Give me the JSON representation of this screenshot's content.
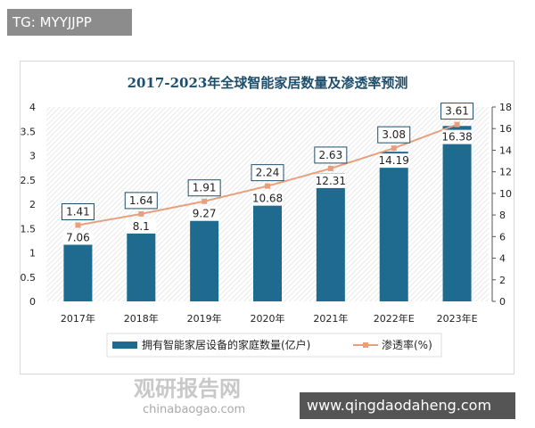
{
  "tag": "TG: MYYJJPP",
  "site": "www.qingdaodaheng.com",
  "watermark": {
    "cn": "观研报告网",
    "en": "chinabaogao.com"
  },
  "chart_data": {
    "type": "bar+line",
    "title": "2017-2023年全球智能家居数量及渗透率预测",
    "categories": [
      "2017年",
      "2018年",
      "2019年",
      "2020年",
      "2021年",
      "2022年E",
      "2023年E"
    ],
    "series": [
      {
        "name": "拥有智能家居设备的家庭数量(亿户)",
        "type": "bar",
        "axis": "left",
        "values": [
          1.41,
          1.64,
          1.91,
          2.24,
          2.63,
          3.08,
          3.61
        ],
        "color": "#1f6a8f"
      },
      {
        "name": "渗透率(%)",
        "type": "line",
        "axis": "right",
        "values": [
          7.06,
          8.1,
          9.27,
          10.68,
          12.31,
          14.19,
          16.38
        ],
        "color": "#e8a07c"
      }
    ],
    "left_axis": {
      "range": [
        0,
        4
      ],
      "ticks": [
        "0",
        "0.5",
        "1",
        "1.5",
        "2",
        "2.5",
        "3",
        "3.5",
        "4"
      ]
    },
    "right_axis": {
      "range": [
        0,
        18
      ],
      "ticks": [
        "0",
        "2",
        "4",
        "6",
        "8",
        "10",
        "12",
        "14",
        "16",
        "18"
      ]
    },
    "legend": "bottom",
    "grid": false
  }
}
